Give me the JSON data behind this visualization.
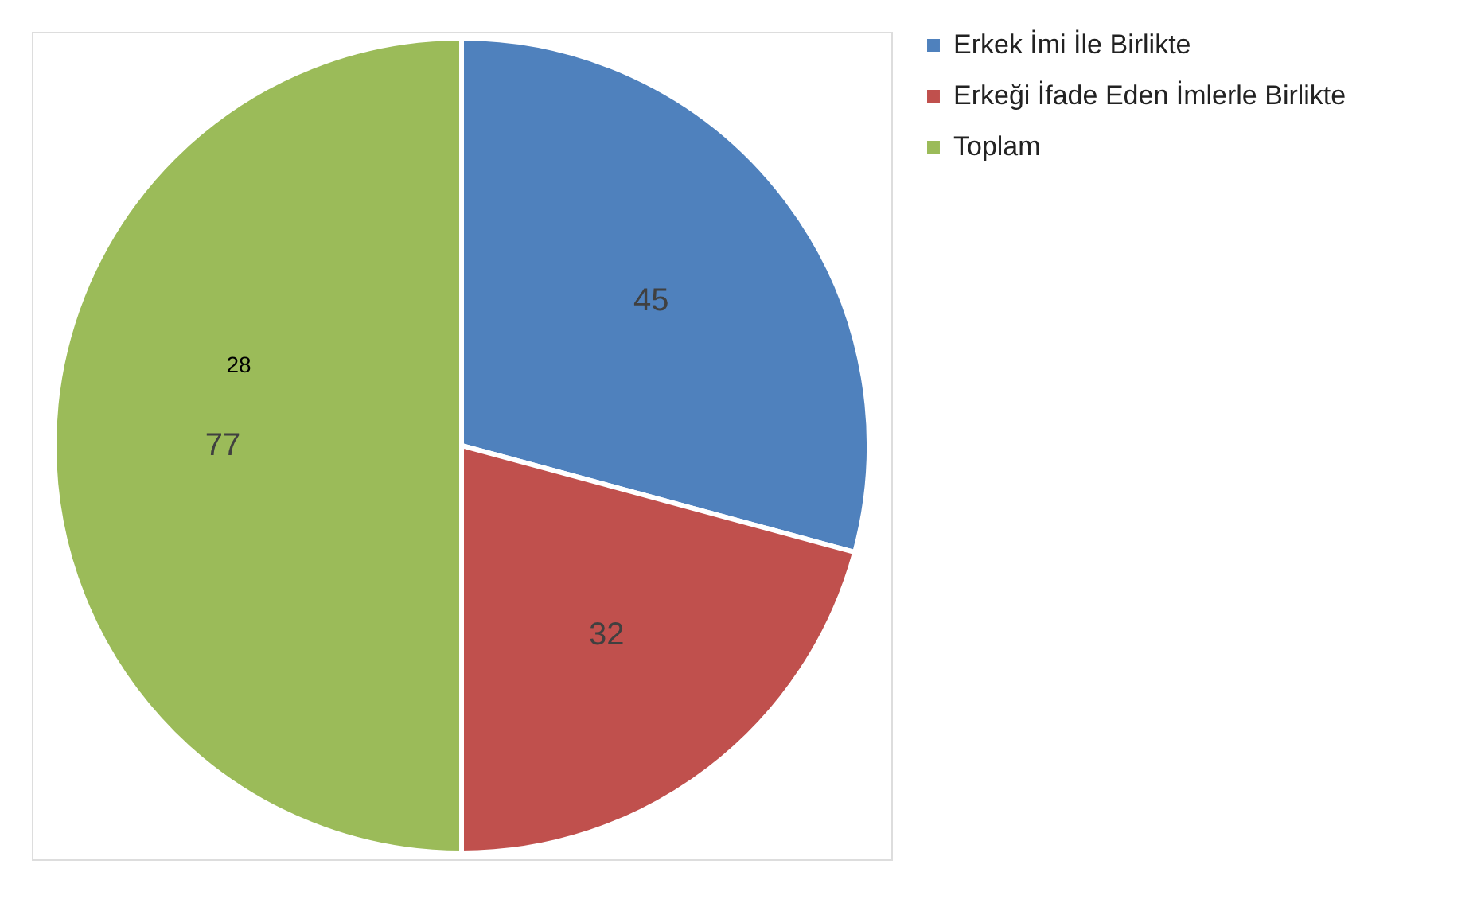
{
  "chart_data": {
    "type": "pie",
    "categories": [
      "Erkek İmi İle Birlikte",
      "Erkeği İfade Eden İmlerle Birlikte",
      "Toplam"
    ],
    "values": [
      45,
      32,
      77
    ],
    "colors": [
      "#4f81bd",
      "#c0504d",
      "#9bbb59"
    ],
    "data_labels": true,
    "legend": "right",
    "annotations": [
      "28"
    ]
  }
}
